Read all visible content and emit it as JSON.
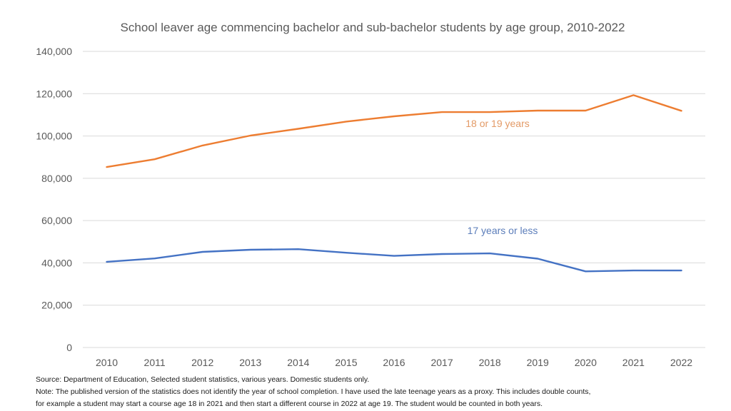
{
  "chart_data": {
    "type": "line",
    "title": "School leaver age commencing bachelor and sub-bachelor students by age group, 2010-2022",
    "xlabel": "",
    "ylabel": "",
    "categories": [
      "2010",
      "2011",
      "2012",
      "2013",
      "2014",
      "2015",
      "2016",
      "2017",
      "2018",
      "2019",
      "2020",
      "2021",
      "2022"
    ],
    "ylim": [
      0,
      140000
    ],
    "yticks": [
      0,
      20000,
      40000,
      60000,
      80000,
      100000,
      120000,
      140000
    ],
    "ytick_labels": [
      "0",
      "20,000",
      "40,000",
      "60,000",
      "80,000",
      "100,000",
      "120,000",
      "140,000"
    ],
    "grid": true,
    "legend": "inline-labels",
    "series": [
      {
        "name": "18 or 19 years",
        "color": "#ED7D31",
        "label_color": "#E39A66",
        "values": [
          85300,
          89000,
          95500,
          100200,
          103400,
          106800,
          109300,
          111300,
          111300,
          112000,
          112000,
          119300,
          111900
        ]
      },
      {
        "name": "17 years or less",
        "color": "#4472C4",
        "label_color": "#5B7DBA",
        "values": [
          40500,
          42100,
          45200,
          46200,
          46500,
          44800,
          43300,
          44200,
          44500,
          42000,
          36000,
          36400,
          36400
        ]
      }
    ]
  },
  "notes": {
    "source": "Source: Department of Education, Selected student statistics, various years. Domestic students only.",
    "note_line1": "Note: The published version of the statistics does not identify the year of school completion.  I have used the late teenage years as a proxy. This includes double counts,",
    "note_line2": "for example a student may start a course age 18 in 2021 and then start a different course in 2022 at age 19. The student would be counted in both years."
  }
}
